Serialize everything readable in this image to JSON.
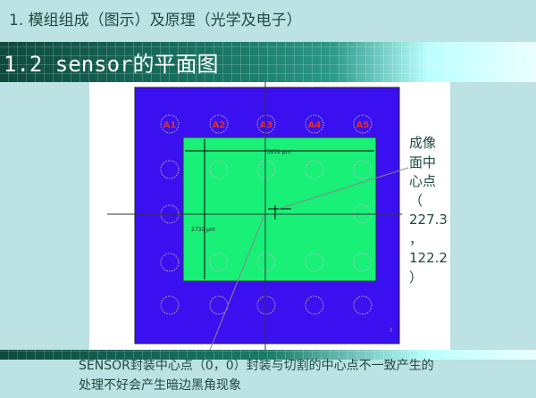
{
  "slide": {
    "section_title": "1. 模组组成（图示）及原理（光学及电子）",
    "title": "1.2 sensor的平面图"
  },
  "diagram": {
    "pads_top": [
      "A1",
      "A2",
      "A3",
      "A4",
      "A5"
    ],
    "width_label": "3651 μm",
    "height_label": "2730 μm",
    "corner_mark": "I",
    "colors": {
      "package": "#3a10f0",
      "sensor": "#18f078",
      "pad_label": "#e03020"
    },
    "image_center_label": [
      "成像",
      "面中",
      "心点",
      "（",
      "227.3",
      "，",
      "122.2",
      "）"
    ]
  },
  "note": {
    "lines": [
      "SENSOR封装中心点（0，0）封装与切割的中心点不一致产生的",
      "处理不好会产生暗边黑角现象"
    ]
  }
}
